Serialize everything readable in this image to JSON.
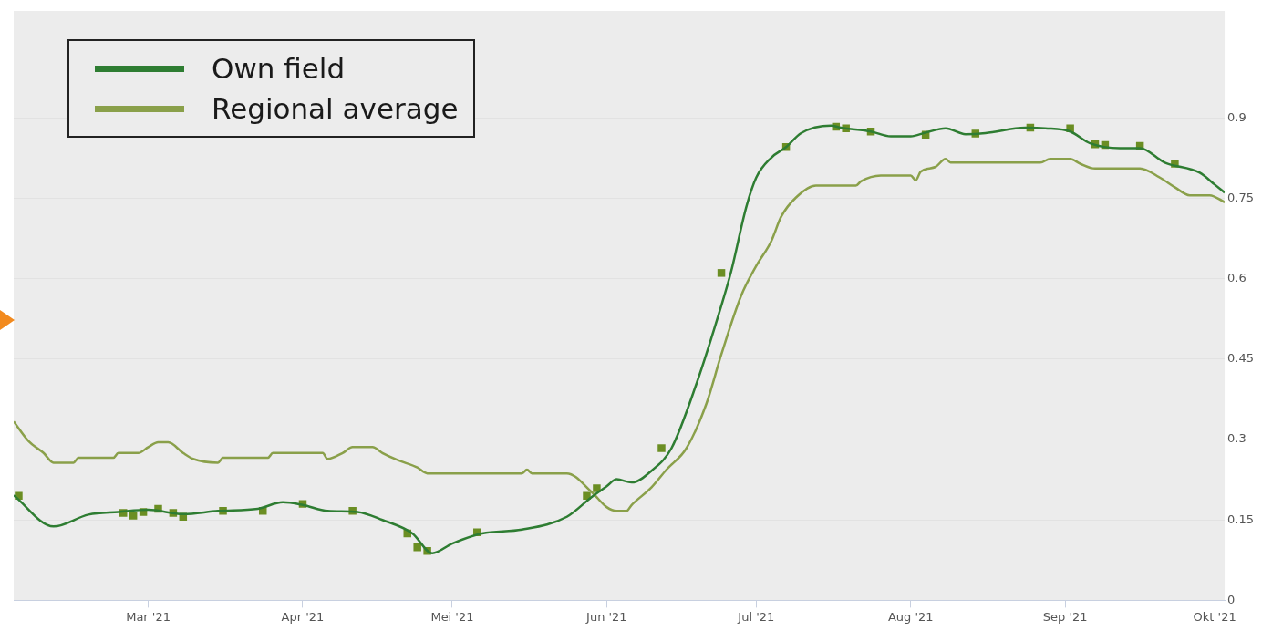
{
  "chart_data": {
    "type": "line",
    "xlim": [
      "2021-02-02",
      "2021-10-03"
    ],
    "xticks": [
      {
        "value": "2021-03-01",
        "label": "Mar '21"
      },
      {
        "value": "2021-04-01",
        "label": "Apr '21"
      },
      {
        "value": "2021-05-01",
        "label": "Mei '21"
      },
      {
        "value": "2021-06-01",
        "label": "Jun '21"
      },
      {
        "value": "2021-07-01",
        "label": "Jul '21"
      },
      {
        "value": "2021-08-01",
        "label": "Aug '21"
      },
      {
        "value": "2021-09-01",
        "label": "Sep '21"
      },
      {
        "value": "2021-10-01",
        "label": "Okt '21"
      }
    ],
    "ylim": [
      0,
      1.1
    ],
    "yticks": [
      0,
      0.15,
      0.3,
      0.45,
      0.6,
      0.75,
      0.9
    ],
    "grid": "y",
    "legend": "top left",
    "series": [
      {
        "name": "Own field",
        "color": "#2e7d32",
        "marker": "none",
        "x": [
          "2021-02-02",
          "2021-02-10",
          "2021-02-17",
          "2021-02-23",
          "2021-03-01",
          "2021-03-08",
          "2021-03-15",
          "2021-03-23",
          "2021-03-28",
          "2021-04-01",
          "2021-04-06",
          "2021-04-12",
          "2021-04-17",
          "2021-04-23",
          "2021-04-27",
          "2021-05-01",
          "2021-05-07",
          "2021-05-15",
          "2021-05-24",
          "2021-05-29",
          "2021-06-01",
          "2021-06-03",
          "2021-06-06",
          "2021-06-10",
          "2021-06-14",
          "2021-06-19",
          "2021-06-24",
          "2021-06-26",
          "2021-06-29",
          "2021-07-01",
          "2021-07-04",
          "2021-07-07",
          "2021-07-10",
          "2021-07-16",
          "2021-07-18",
          "2021-07-24",
          "2021-07-28",
          "2021-08-01",
          "2021-08-04",
          "2021-08-08",
          "2021-08-12",
          "2021-08-16",
          "2021-08-24",
          "2021-08-28",
          "2021-09-02",
          "2021-09-06",
          "2021-09-12",
          "2021-09-16",
          "2021-09-21",
          "2021-09-28",
          "2021-10-01",
          "2021-10-03"
        ],
        "values": [
          0.196,
          0.138,
          0.16,
          0.165,
          0.169,
          0.161,
          0.167,
          0.171,
          0.183,
          0.178,
          0.167,
          0.165,
          0.15,
          0.125,
          0.088,
          0.106,
          0.125,
          0.132,
          0.156,
          0.193,
          0.213,
          0.226,
          0.22,
          0.242,
          0.284,
          0.404,
          0.55,
          0.615,
          0.734,
          0.789,
          0.826,
          0.846,
          0.872,
          0.886,
          0.882,
          0.875,
          0.866,
          0.866,
          0.873,
          0.881,
          0.87,
          0.872,
          0.882,
          0.881,
          0.875,
          0.853,
          0.844,
          0.844,
          0.817,
          0.798,
          0.776,
          0.761
        ]
      },
      {
        "name": "Regional average",
        "color": "#8aa04a",
        "marker": "none",
        "x": [
          "2021-02-02",
          "2021-02-05",
          "2021-02-08",
          "2021-02-10",
          "2021-02-14",
          "2021-02-15",
          "2021-02-22",
          "2021-02-23",
          "2021-02-27",
          "2021-03-01",
          "2021-03-03",
          "2021-03-05",
          "2021-03-08",
          "2021-03-10",
          "2021-03-15",
          "2021-03-16",
          "2021-03-25",
          "2021-03-26",
          "2021-04-05",
          "2021-04-06",
          "2021-04-09",
          "2021-04-11",
          "2021-04-15",
          "2021-04-17",
          "2021-04-20",
          "2021-04-24",
          "2021-04-26",
          "2021-05-15",
          "2021-05-16",
          "2021-05-17",
          "2021-05-24",
          "2021-05-29",
          "2021-06-01",
          "2021-06-03",
          "2021-06-05",
          "2021-06-06",
          "2021-06-10",
          "2021-06-13",
          "2021-06-17",
          "2021-06-21",
          "2021-06-24",
          "2021-06-28",
          "2021-07-01",
          "2021-07-04",
          "2021-07-06",
          "2021-07-09",
          "2021-07-13",
          "2021-07-21",
          "2021-07-22",
          "2021-07-26",
          "2021-08-01",
          "2021-08-02",
          "2021-08-03",
          "2021-08-06",
          "2021-08-08",
          "2021-08-09",
          "2021-08-27",
          "2021-08-29",
          "2021-09-02",
          "2021-09-04",
          "2021-09-07",
          "2021-09-16",
          "2021-09-20",
          "2021-09-23",
          "2021-09-26",
          "2021-09-30",
          "2021-10-03"
        ],
        "values": [
          0.334,
          0.297,
          0.275,
          0.257,
          0.257,
          0.266,
          0.266,
          0.275,
          0.275,
          0.286,
          0.295,
          0.295,
          0.275,
          0.264,
          0.257,
          0.266,
          0.266,
          0.275,
          0.275,
          0.264,
          0.275,
          0.286,
          0.286,
          0.275,
          0.262,
          0.248,
          0.237,
          0.237,
          0.244,
          0.237,
          0.237,
          0.202,
          0.174,
          0.167,
          0.167,
          0.178,
          0.211,
          0.244,
          0.284,
          0.367,
          0.459,
          0.569,
          0.624,
          0.67,
          0.716,
          0.752,
          0.774,
          0.774,
          0.782,
          0.793,
          0.793,
          0.784,
          0.8,
          0.809,
          0.824,
          0.817,
          0.817,
          0.824,
          0.824,
          0.815,
          0.806,
          0.806,
          0.789,
          0.771,
          0.756,
          0.756,
          0.743
        ]
      },
      {
        "type": "scatter",
        "color": "#6b8e23",
        "marker": "square",
        "x": [
          "2021-02-03",
          "2021-02-24",
          "2021-02-26",
          "2021-02-28",
          "2021-03-03",
          "2021-03-06",
          "2021-03-08",
          "2021-03-16",
          "2021-03-24",
          "2021-04-01",
          "2021-04-11",
          "2021-04-22",
          "2021-04-24",
          "2021-04-26",
          "2021-05-06",
          "2021-05-28",
          "2021-05-30",
          "2021-06-12",
          "2021-06-24",
          "2021-07-07",
          "2021-07-17",
          "2021-07-19",
          "2021-07-24",
          "2021-08-04",
          "2021-08-14",
          "2021-08-25",
          "2021-09-02",
          "2021-09-07",
          "2021-09-09",
          "2021-09-16",
          "2021-09-23"
        ],
        "values": [
          0.195,
          0.163,
          0.158,
          0.165,
          0.171,
          0.163,
          0.156,
          0.167,
          0.167,
          0.18,
          0.167,
          0.125,
          0.099,
          0.092,
          0.127,
          0.195,
          0.209,
          0.284,
          0.611,
          0.846,
          0.884,
          0.881,
          0.875,
          0.869,
          0.871,
          0.882,
          0.881,
          0.851,
          0.85,
          0.848,
          0.815
        ]
      }
    ]
  }
}
